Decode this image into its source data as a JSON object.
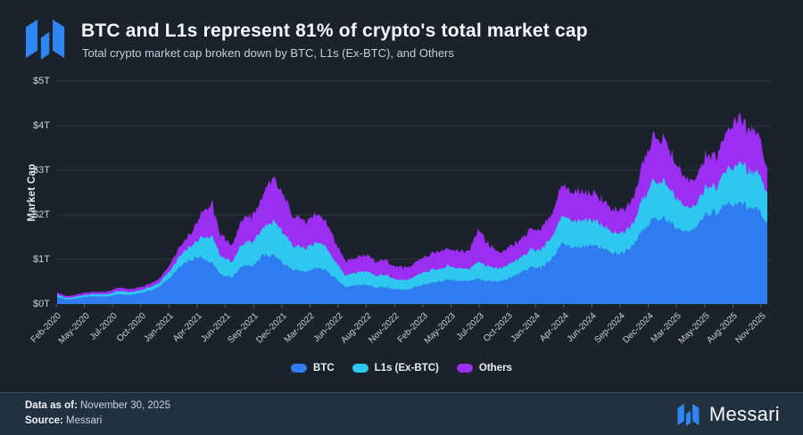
{
  "header": {
    "title": "BTC and L1s represent 81% of crypto's total market cap",
    "subtitle": "Total crypto market cap broken down by BTC, L1s (Ex-BTC), and Others"
  },
  "footer": {
    "data_as_of_label": "Data as of:",
    "data_as_of_value": " November 30, 2025",
    "source_label": "Source:",
    "source_value": " Messari",
    "brand": "Messari"
  },
  "colors": {
    "background": "#1b222b",
    "footer_bg": "#223140",
    "grid": "#2b343e",
    "tick": "#5a6674",
    "axis_text": "#c8d2dc",
    "btc": "#2e7cf0",
    "l1s": "#2ec7f0",
    "others": "#9b2ef0",
    "brand_blue": "#2e86f2"
  },
  "chart_data": {
    "type": "area",
    "stacked": true,
    "title": "BTC and L1s represent 81% of crypto's total market cap",
    "subtitle": "Total crypto market cap broken down by BTC, L1s (Ex-BTC), and Others",
    "xlabel": "",
    "ylabel": "Market Cap",
    "units": "USD trillions",
    "ylim": [
      0,
      5
    ],
    "ytick_labels": [
      "$0T",
      "$1T",
      "$2T",
      "$3T",
      "$4T",
      "$5T"
    ],
    "grid": "horizontal",
    "legend_position": "bottom-center",
    "legend": [
      "BTC",
      "L1s (Ex-BTC)",
      "Others"
    ],
    "xtick_labels": [
      "Feb-2020",
      "May-2020",
      "Jul-2020",
      "Oct-2020",
      "Jan-2021",
      "Apr-2021",
      "Jun-2021",
      "Sep-2021",
      "Dec-2021",
      "Mar-2022",
      "Jun-2022",
      "Aug-2022",
      "Nov-2022",
      "Feb-2023",
      "May-2023",
      "Jul-2023",
      "Oct-2023",
      "Jan-2024",
      "Apr-2024",
      "Jun-2024",
      "Sep-2024",
      "Dec-2024",
      "Mar-2025",
      "May-2025",
      "Aug-2025",
      "Nov-2025"
    ],
    "x": [
      "Feb-2020",
      "Mar-2020",
      "Apr-2020",
      "May-2020",
      "Jun-2020",
      "Jul-2020",
      "Aug-2020",
      "Sep-2020",
      "Oct-2020",
      "Nov-2020",
      "Dec-2020",
      "Jan-2021",
      "Feb-2021",
      "Mar-2021",
      "Apr-2021",
      "May-2021",
      "Jun-2021",
      "Jul-2021",
      "Aug-2021",
      "Sep-2021",
      "Oct-2021",
      "Nov-2021",
      "Dec-2021",
      "Jan-2022",
      "Feb-2022",
      "Mar-2022",
      "Apr-2022",
      "May-2022",
      "Jun-2022",
      "Jul-2022",
      "Aug-2022",
      "Sep-2022",
      "Oct-2022",
      "Nov-2022",
      "Dec-2022",
      "Jan-2023",
      "Feb-2023",
      "Mar-2023",
      "Apr-2023",
      "May-2023",
      "Jun-2023",
      "Jul-2023",
      "Aug-2023",
      "Sep-2023",
      "Oct-2023",
      "Nov-2023",
      "Dec-2023",
      "Jan-2024",
      "Feb-2024",
      "Mar-2024",
      "Apr-2024",
      "May-2024",
      "Jun-2024",
      "Jul-2024",
      "Aug-2024",
      "Sep-2024",
      "Oct-2024",
      "Nov-2024",
      "Dec-2024",
      "Jan-2025",
      "Feb-2025",
      "Mar-2025",
      "Apr-2025",
      "May-2025",
      "Jun-2025",
      "Jul-2025",
      "Aug-2025",
      "Sep-2025",
      "Oct-2025",
      "Nov-2025"
    ],
    "series": [
      {
        "name": "BTC",
        "color": "#2e7cf0",
        "values": [
          0.16,
          0.1,
          0.13,
          0.17,
          0.17,
          0.17,
          0.22,
          0.2,
          0.24,
          0.3,
          0.4,
          0.6,
          0.85,
          1.0,
          1.05,
          0.95,
          0.65,
          0.62,
          0.85,
          0.85,
          1.1,
          1.1,
          0.9,
          0.75,
          0.73,
          0.8,
          0.76,
          0.58,
          0.38,
          0.42,
          0.43,
          0.37,
          0.38,
          0.32,
          0.32,
          0.4,
          0.45,
          0.5,
          0.55,
          0.52,
          0.52,
          0.56,
          0.5,
          0.51,
          0.6,
          0.7,
          0.82,
          0.82,
          1.0,
          1.35,
          1.25,
          1.3,
          1.3,
          1.25,
          1.15,
          1.15,
          1.3,
          1.7,
          1.9,
          1.95,
          1.75,
          1.65,
          1.65,
          2.05,
          2.05,
          2.25,
          2.25,
          2.2,
          2.15,
          1.8
        ]
      },
      {
        "name": "L1s (Ex-BTC)",
        "color": "#2ec7f0",
        "values": [
          0.05,
          0.03,
          0.04,
          0.04,
          0.05,
          0.05,
          0.07,
          0.06,
          0.06,
          0.08,
          0.09,
          0.16,
          0.25,
          0.3,
          0.45,
          0.6,
          0.4,
          0.35,
          0.5,
          0.55,
          0.6,
          0.75,
          0.7,
          0.55,
          0.52,
          0.55,
          0.52,
          0.38,
          0.26,
          0.28,
          0.3,
          0.27,
          0.27,
          0.22,
          0.21,
          0.26,
          0.28,
          0.29,
          0.3,
          0.28,
          0.28,
          0.4,
          0.32,
          0.28,
          0.3,
          0.34,
          0.4,
          0.4,
          0.48,
          0.62,
          0.58,
          0.6,
          0.55,
          0.52,
          0.46,
          0.45,
          0.48,
          0.7,
          0.85,
          0.8,
          0.68,
          0.55,
          0.5,
          0.6,
          0.58,
          0.75,
          0.9,
          0.85,
          0.8,
          0.72
        ]
      },
      {
        "name": "Others",
        "color": "#9b2ef0",
        "values": [
          0.05,
          0.04,
          0.05,
          0.05,
          0.05,
          0.06,
          0.08,
          0.07,
          0.07,
          0.08,
          0.09,
          0.14,
          0.22,
          0.28,
          0.5,
          0.75,
          0.45,
          0.4,
          0.55,
          0.6,
          0.7,
          1.0,
          0.85,
          0.65,
          0.6,
          0.62,
          0.6,
          0.44,
          0.32,
          0.34,
          0.36,
          0.32,
          0.33,
          0.28,
          0.27,
          0.32,
          0.36,
          0.38,
          0.4,
          0.38,
          0.4,
          0.75,
          0.45,
          0.36,
          0.38,
          0.42,
          0.46,
          0.44,
          0.5,
          0.72,
          0.65,
          0.65,
          0.62,
          0.58,
          0.52,
          0.52,
          0.55,
          0.8,
          1.0,
          0.95,
          0.8,
          0.65,
          0.6,
          0.7,
          0.68,
          0.85,
          1.05,
          0.95,
          0.9,
          0.55
        ]
      }
    ]
  }
}
